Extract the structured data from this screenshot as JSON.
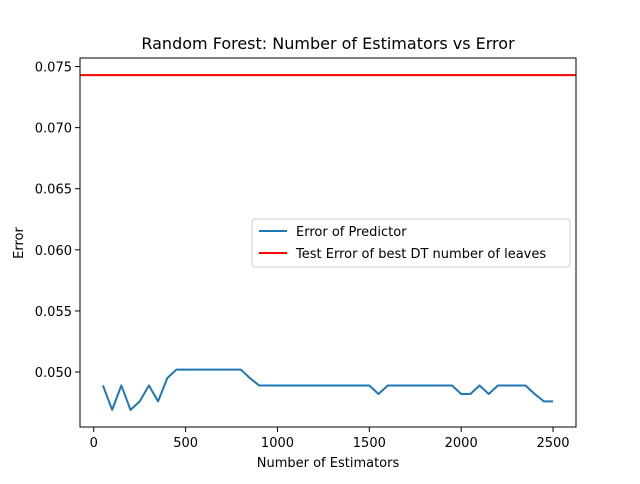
{
  "chart_data": {
    "type": "line",
    "title": "Random Forest: Number of Estimators vs Error",
    "xlabel": "Number of Estimators",
    "ylabel": "Error",
    "xlim": [
      -75,
      2625
    ],
    "ylim": [
      0.0455,
      0.0757
    ],
    "grid": false,
    "legend_position": "center-right",
    "x_ticks": [
      0,
      500,
      1000,
      1500,
      2000,
      2500
    ],
    "y_ticks": [
      0.05,
      0.055,
      0.06,
      0.065,
      0.07,
      0.075
    ],
    "x_tick_labels": [
      "0",
      "500",
      "1000",
      "1500",
      "2000",
      "2500"
    ],
    "y_tick_labels": [
      "0.050",
      "0.055",
      "0.060",
      "0.065",
      "0.070",
      "0.075"
    ],
    "series": [
      {
        "name": "Error of Predictor",
        "color": "#1f77b4",
        "x": [
          50,
          100,
          150,
          200,
          250,
          300,
          350,
          400,
          450,
          500,
          550,
          600,
          650,
          700,
          750,
          800,
          850,
          900,
          950,
          1000,
          1050,
          1100,
          1150,
          1200,
          1250,
          1300,
          1350,
          1400,
          1450,
          1500,
          1550,
          1600,
          1650,
          1700,
          1750,
          1800,
          1850,
          1900,
          1950,
          2000,
          2050,
          2100,
          2150,
          2200,
          2250,
          2300,
          2350,
          2400,
          2450,
          2500
        ],
        "y": [
          0.0489,
          0.0469,
          0.0489,
          0.0469,
          0.0476,
          0.0489,
          0.0476,
          0.0495,
          0.0502,
          0.0502,
          0.0502,
          0.0502,
          0.0502,
          0.0502,
          0.0502,
          0.0502,
          0.0495,
          0.0489,
          0.0489,
          0.0489,
          0.0489,
          0.0489,
          0.0489,
          0.0489,
          0.0489,
          0.0489,
          0.0489,
          0.0489,
          0.0489,
          0.0489,
          0.0482,
          0.0489,
          0.0489,
          0.0489,
          0.0489,
          0.0489,
          0.0489,
          0.0489,
          0.0489,
          0.0482,
          0.0482,
          0.0489,
          0.0482,
          0.0489,
          0.0489,
          0.0489,
          0.0489,
          0.0482,
          0.0476,
          0.0476
        ]
      },
      {
        "name": "Test Error of best DT number of leaves",
        "color": "#ff0000",
        "type": "hline",
        "y": 0.0743
      }
    ]
  }
}
